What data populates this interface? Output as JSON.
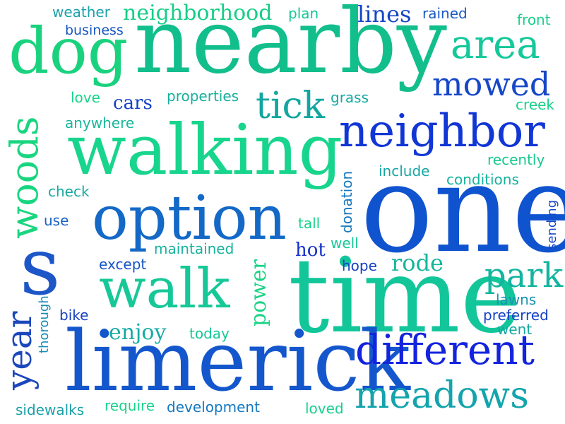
{
  "words": [
    {
      "text": "nearby",
      "color": "#12be8c"
    },
    {
      "text": "one",
      "color": "#1053cf"
    },
    {
      "text": "time",
      "color": "#12c69a"
    },
    {
      "text": "limerick",
      "color": "#1457cd"
    },
    {
      "text": "walking",
      "color": "#18d58d"
    },
    {
      "text": "option",
      "color": "#1469c7"
    },
    {
      "text": "walk",
      "color": "#16c897"
    },
    {
      "text": "s",
      "color": "#1d56c6"
    },
    {
      "text": "dog",
      "color": "#1ad27e"
    },
    {
      "text": "neighbor",
      "color": "#1136d6"
    },
    {
      "text": "different",
      "color": "#1323de"
    },
    {
      "text": "meadows",
      "color": "#13a4ad"
    },
    {
      "text": "area",
      "color": "#14c89a"
    },
    {
      "text": "woods",
      "color": "#19d57f"
    },
    {
      "text": "tick",
      "color": "#13a6a0"
    },
    {
      "text": "mowed",
      "color": "#1547c8"
    },
    {
      "text": "park",
      "color": "#13b4a0"
    },
    {
      "text": "year",
      "color": "#1b47bc"
    },
    {
      "text": "neighborhood",
      "color": "#17ce86"
    },
    {
      "text": "lines",
      "color": "#1546c4"
    },
    {
      "text": "rode",
      "color": "#15b59c"
    },
    {
      "text": "enjoy",
      "color": "#16aaa4"
    },
    {
      "text": "power",
      "color": "#1ad385"
    },
    {
      "text": "weather",
      "color": "#1aa1a9"
    },
    {
      "text": "plan",
      "color": "#16c896"
    },
    {
      "text": "rained",
      "color": "#1a5ac4"
    },
    {
      "text": "front",
      "color": "#1acf8c"
    },
    {
      "text": "business",
      "color": "#1757c2"
    },
    {
      "text": "cars",
      "color": "#1542c6"
    },
    {
      "text": "properties",
      "color": "#17ae9c"
    },
    {
      "text": "grass",
      "color": "#17a9a1"
    },
    {
      "text": "love",
      "color": "#18d488"
    },
    {
      "text": "creek",
      "color": "#18cf8a"
    },
    {
      "text": "anywhere",
      "color": "#17b69a"
    },
    {
      "text": "recently",
      "color": "#18c98e"
    },
    {
      "text": "include",
      "color": "#17a6a3"
    },
    {
      "text": "conditions",
      "color": "#15b29d"
    },
    {
      "text": "check",
      "color": "#17a8a2"
    },
    {
      "text": "donation",
      "color": "#1878c0"
    },
    {
      "text": "sending",
      "color": "#1847c9"
    },
    {
      "text": "use",
      "color": "#1a62c2"
    },
    {
      "text": "tall",
      "color": "#18d38b"
    },
    {
      "text": "well",
      "color": "#16c696"
    },
    {
      "text": "maintained",
      "color": "#15b29d"
    },
    {
      "text": "hot",
      "color": "#1431c9"
    },
    {
      "text": "except",
      "color": "#1453c8"
    },
    {
      "text": "hope",
      "color": "#1440c6"
    },
    {
      "text": "thorough",
      "color": "#1a8bb3"
    },
    {
      "text": "lawns",
      "color": "#1a92b0"
    },
    {
      "text": "preferred",
      "color": "#1542c6"
    },
    {
      "text": "went",
      "color": "#15a8a1"
    },
    {
      "text": "bike",
      "color": "#1942bf"
    },
    {
      "text": "today",
      "color": "#17c894"
    },
    {
      "text": "sidewalks",
      "color": "#1aa0a9"
    },
    {
      "text": "require",
      "color": "#17d38e"
    },
    {
      "text": "development",
      "color": "#1478c0"
    },
    {
      "text": "loved",
      "color": "#18d08d"
    }
  ]
}
